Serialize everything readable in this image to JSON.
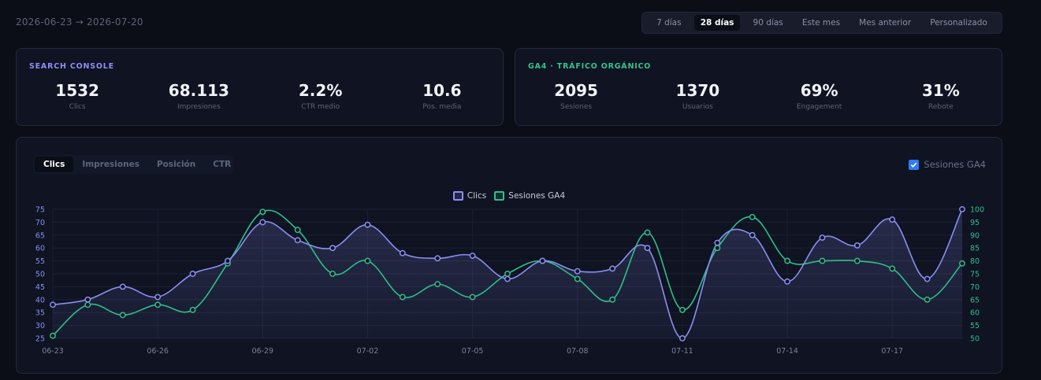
{
  "header": {
    "date_range": "2026-06-23 → 2026-07-20",
    "ranges": [
      {
        "label": "7 días",
        "active": false
      },
      {
        "label": "28 días",
        "active": true
      },
      {
        "label": "90 días",
        "active": false
      },
      {
        "label": "Este mes",
        "active": false
      },
      {
        "label": "Mes anterior",
        "active": false
      },
      {
        "label": "Personalizado",
        "active": false
      }
    ]
  },
  "search_console": {
    "title": "SEARCH CONSOLE",
    "metrics": [
      {
        "value": "1532",
        "label": "Clics"
      },
      {
        "value": "68.113",
        "label": "Impresiones"
      },
      {
        "value": "2.2%",
        "label": "CTR medio"
      },
      {
        "value": "10.6",
        "label": "Pos. media"
      }
    ]
  },
  "ga4": {
    "title": "GA4 · TRÁFICO ORGÁNICO",
    "metrics": [
      {
        "value": "2095",
        "label": "Sesiones"
      },
      {
        "value": "1370",
        "label": "Usuarios"
      },
      {
        "value": "69%",
        "label": "Engagement"
      },
      {
        "value": "31%",
        "label": "Rebote"
      }
    ]
  },
  "chart_panel": {
    "tabs": [
      {
        "label": "Clics",
        "active": true
      },
      {
        "label": "Impresiones",
        "active": false
      },
      {
        "label": "Posición",
        "active": false
      },
      {
        "label": "CTR",
        "active": false
      }
    ],
    "ga_toggle_label": "Sesiones GA4",
    "ga_toggle_checked": true
  },
  "colors": {
    "clicks": "#8b8ff0",
    "sessions": "#2fbf8a",
    "search_console_title": "#8d8ff2",
    "ga4_title": "#35c28b"
  },
  "chart_data": {
    "type": "line",
    "x": [
      "06-23",
      "06-24",
      "06-25",
      "06-26",
      "06-27",
      "06-28",
      "06-29",
      "06-30",
      "07-01",
      "07-02",
      "07-03",
      "07-04",
      "07-05",
      "07-06",
      "07-07",
      "07-08",
      "07-09",
      "07-10",
      "07-11",
      "07-12",
      "07-13",
      "07-14",
      "07-15",
      "07-16",
      "07-17",
      "07-18",
      "07-19"
    ],
    "xtick_labels": [
      "06-23",
      "06-26",
      "06-29",
      "07-02",
      "07-05",
      "07-08",
      "07-11",
      "07-14",
      "07-17"
    ],
    "series": [
      {
        "name": "Clics",
        "axis": "left",
        "values": [
          38,
          40,
          45,
          41,
          50,
          55,
          70,
          63,
          60,
          69,
          58,
          56,
          57,
          48,
          55,
          51,
          52,
          60,
          25,
          62,
          65,
          47,
          64,
          61,
          71,
          48,
          75
        ]
      },
      {
        "name": "Sesiones GA4",
        "axis": "right",
        "values": [
          51,
          63,
          59,
          63,
          61,
          79,
          99,
          92,
          75,
          80,
          66,
          71,
          66,
          75,
          80,
          73,
          65,
          91,
          61,
          85,
          97,
          80,
          80,
          80,
          77,
          65,
          79
        ]
      }
    ],
    "y_left": {
      "ticks": [
        "25",
        "30",
        "35",
        "40",
        "45",
        "50",
        "55",
        "60",
        "65",
        "70",
        "75"
      ],
      "lim": [
        25,
        75
      ]
    },
    "y_right": {
      "ticks": [
        "50",
        "55",
        "60",
        "65",
        "70",
        "75",
        "80",
        "85",
        "90",
        "95",
        "100"
      ],
      "lim": [
        50,
        100
      ]
    },
    "legend_position": "top-center",
    "grid": true
  }
}
